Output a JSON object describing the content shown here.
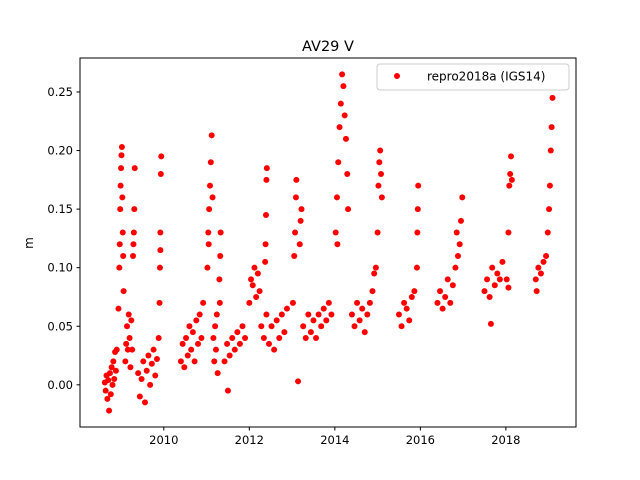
{
  "chart_data": {
    "type": "scatter",
    "title": "AV29 V",
    "xlabel": "",
    "ylabel": "m",
    "xlim": [
      2008.04,
      2019.64
    ],
    "ylim": [
      -0.036,
      0.279
    ],
    "xticks": [
      2010,
      2012,
      2014,
      2016,
      2018
    ],
    "xtick_labels": [
      "2010",
      "2012",
      "2014",
      "2016",
      "2018"
    ],
    "yticks": [
      0.0,
      0.05,
      0.1,
      0.15,
      0.2,
      0.25
    ],
    "ytick_labels": [
      "0.00",
      "0.05",
      "0.10",
      "0.15",
      "0.20",
      "0.25"
    ],
    "grid": false,
    "legend_position": "top-right",
    "color": "#ff0000",
    "series": [
      {
        "name": "repro2018a (IGS14)",
        "points": [
          [
            2008.62,
            0.002
          ],
          [
            2008.64,
            -0.005
          ],
          [
            2008.66,
            0.008
          ],
          [
            2008.68,
            -0.012
          ],
          [
            2008.7,
            0.004
          ],
          [
            2008.72,
            -0.022
          ],
          [
            2008.74,
            0.01
          ],
          [
            2008.76,
            -0.008
          ],
          [
            2008.78,
            0.015
          ],
          [
            2008.8,
            0.0
          ],
          [
            2008.82,
            0.02
          ],
          [
            2008.84,
            0.005
          ],
          [
            2008.86,
            0.028
          ],
          [
            2008.88,
            0.012
          ],
          [
            2008.9,
            0.03
          ],
          [
            2008.94,
            0.065
          ],
          [
            2008.96,
            0.1
          ],
          [
            2008.97,
            0.12
          ],
          [
            2008.98,
            0.15
          ],
          [
            2008.99,
            0.17
          ],
          [
            2009.0,
            0.185
          ],
          [
            2009.01,
            0.196
          ],
          [
            2009.02,
            0.203
          ],
          [
            2009.03,
            0.16
          ],
          [
            2009.04,
            0.13
          ],
          [
            2009.05,
            0.11
          ],
          [
            2009.06,
            0.08
          ],
          [
            2009.1,
            0.02
          ],
          [
            2009.12,
            0.035
          ],
          [
            2009.14,
            0.05
          ],
          [
            2009.16,
            0.03
          ],
          [
            2009.18,
            0.06
          ],
          [
            2009.2,
            0.04
          ],
          [
            2009.22,
            0.015
          ],
          [
            2009.24,
            0.055
          ],
          [
            2009.26,
            0.03
          ],
          [
            2009.28,
            0.11
          ],
          [
            2009.3,
            0.13
          ],
          [
            2009.31,
            0.15
          ],
          [
            2009.32,
            0.185
          ],
          [
            2009.29,
            0.12
          ],
          [
            2009.4,
            0.01
          ],
          [
            2009.44,
            -0.01
          ],
          [
            2009.48,
            0.005
          ],
          [
            2009.52,
            0.02
          ],
          [
            2009.56,
            -0.015
          ],
          [
            2009.6,
            0.012
          ],
          [
            2009.64,
            0.025
          ],
          [
            2009.68,
            0.0
          ],
          [
            2009.72,
            0.018
          ],
          [
            2009.76,
            0.03
          ],
          [
            2009.8,
            0.008
          ],
          [
            2009.84,
            0.022
          ],
          [
            2009.88,
            0.04
          ],
          [
            2009.9,
            0.07
          ],
          [
            2009.91,
            0.1
          ],
          [
            2009.92,
            0.13
          ],
          [
            2009.93,
            0.18
          ],
          [
            2009.94,
            0.195
          ],
          [
            2009.92,
            0.115
          ],
          [
            2010.4,
            0.02
          ],
          [
            2010.44,
            0.035
          ],
          [
            2010.48,
            0.015
          ],
          [
            2010.52,
            0.04
          ],
          [
            2010.56,
            0.025
          ],
          [
            2010.6,
            0.05
          ],
          [
            2010.64,
            0.03
          ],
          [
            2010.68,
            0.045
          ],
          [
            2010.72,
            0.02
          ],
          [
            2010.76,
            0.055
          ],
          [
            2010.8,
            0.035
          ],
          [
            2010.84,
            0.06
          ],
          [
            2010.88,
            0.04
          ],
          [
            2010.92,
            0.07
          ],
          [
            2011.02,
            0.1
          ],
          [
            2011.04,
            0.13
          ],
          [
            2011.06,
            0.15
          ],
          [
            2011.08,
            0.17
          ],
          [
            2011.1,
            0.19
          ],
          [
            2011.12,
            0.213
          ],
          [
            2011.14,
            0.16
          ],
          [
            2011.05,
            0.12
          ],
          [
            2011.16,
            0.04
          ],
          [
            2011.18,
            0.02
          ],
          [
            2011.2,
            0.05
          ],
          [
            2011.22,
            0.03
          ],
          [
            2011.24,
            0.06
          ],
          [
            2011.26,
            0.01
          ],
          [
            2011.3,
            0.09
          ],
          [
            2011.32,
            0.11
          ],
          [
            2011.33,
            0.13
          ],
          [
            2011.31,
            0.07
          ],
          [
            2011.42,
            0.02
          ],
          [
            2011.48,
            0.035
          ],
          [
            2011.54,
            0.025
          ],
          [
            2011.6,
            0.04
          ],
          [
            2011.66,
            0.03
          ],
          [
            2011.72,
            0.045
          ],
          [
            2011.78,
            0.035
          ],
          [
            2011.84,
            0.05
          ],
          [
            2011.9,
            0.04
          ],
          [
            2011.5,
            -0.005
          ],
          [
            2012.0,
            0.07
          ],
          [
            2012.04,
            0.09
          ],
          [
            2012.08,
            0.085
          ],
          [
            2012.12,
            0.1
          ],
          [
            2012.16,
            0.075
          ],
          [
            2012.2,
            0.095
          ],
          [
            2012.24,
            0.08
          ],
          [
            2012.28,
            0.05
          ],
          [
            2012.34,
            0.04
          ],
          [
            2012.4,
            0.06
          ],
          [
            2012.46,
            0.035
          ],
          [
            2012.52,
            0.05
          ],
          [
            2012.58,
            0.03
          ],
          [
            2012.64,
            0.055
          ],
          [
            2012.7,
            0.04
          ],
          [
            2012.76,
            0.06
          ],
          [
            2012.82,
            0.045
          ],
          [
            2012.88,
            0.065
          ],
          [
            2012.38,
            0.12
          ],
          [
            2012.39,
            0.145
          ],
          [
            2012.4,
            0.175
          ],
          [
            2012.41,
            0.185
          ],
          [
            2012.37,
            0.105
          ],
          [
            2013.02,
            0.07
          ],
          [
            2013.05,
            0.11
          ],
          [
            2013.07,
            0.13
          ],
          [
            2013.09,
            0.16
          ],
          [
            2013.1,
            0.175
          ],
          [
            2013.18,
            0.12
          ],
          [
            2013.2,
            0.14
          ],
          [
            2013.22,
            0.15
          ],
          [
            2013.14,
            0.003
          ],
          [
            2013.26,
            0.05
          ],
          [
            2013.32,
            0.04
          ],
          [
            2013.38,
            0.06
          ],
          [
            2013.44,
            0.045
          ],
          [
            2013.5,
            0.055
          ],
          [
            2013.56,
            0.04
          ],
          [
            2013.62,
            0.06
          ],
          [
            2013.68,
            0.05
          ],
          [
            2013.74,
            0.065
          ],
          [
            2013.8,
            0.055
          ],
          [
            2013.86,
            0.07
          ],
          [
            2013.92,
            0.06
          ],
          [
            2014.02,
            0.13
          ],
          [
            2014.05,
            0.16
          ],
          [
            2014.08,
            0.19
          ],
          [
            2014.11,
            0.22
          ],
          [
            2014.14,
            0.24
          ],
          [
            2014.17,
            0.265
          ],
          [
            2014.2,
            0.255
          ],
          [
            2014.23,
            0.23
          ],
          [
            2014.26,
            0.21
          ],
          [
            2014.29,
            0.18
          ],
          [
            2014.31,
            0.15
          ],
          [
            2014.06,
            0.12
          ],
          [
            2014.4,
            0.06
          ],
          [
            2014.46,
            0.05
          ],
          [
            2014.52,
            0.07
          ],
          [
            2014.58,
            0.055
          ],
          [
            2014.64,
            0.065
          ],
          [
            2014.7,
            0.045
          ],
          [
            2014.76,
            0.06
          ],
          [
            2014.82,
            0.07
          ],
          [
            2014.88,
            0.08
          ],
          [
            2014.92,
            0.095
          ],
          [
            2014.96,
            0.1
          ],
          [
            2015.0,
            0.13
          ],
          [
            2015.02,
            0.17
          ],
          [
            2015.04,
            0.19
          ],
          [
            2015.06,
            0.2
          ],
          [
            2015.08,
            0.18
          ],
          [
            2015.1,
            0.16
          ],
          [
            2015.5,
            0.06
          ],
          [
            2015.56,
            0.05
          ],
          [
            2015.62,
            0.07
          ],
          [
            2015.68,
            0.065
          ],
          [
            2015.74,
            0.055
          ],
          [
            2015.8,
            0.075
          ],
          [
            2015.86,
            0.08
          ],
          [
            2015.92,
            0.1
          ],
          [
            2015.93,
            0.13
          ],
          [
            2015.94,
            0.15
          ],
          [
            2015.95,
            0.17
          ],
          [
            2016.4,
            0.07
          ],
          [
            2016.46,
            0.08
          ],
          [
            2016.52,
            0.065
          ],
          [
            2016.58,
            0.075
          ],
          [
            2016.64,
            0.09
          ],
          [
            2016.7,
            0.07
          ],
          [
            2016.76,
            0.085
          ],
          [
            2016.82,
            0.1
          ],
          [
            2016.88,
            0.11
          ],
          [
            2016.92,
            0.12
          ],
          [
            2016.95,
            0.14
          ],
          [
            2016.98,
            0.16
          ],
          [
            2016.85,
            0.13
          ],
          [
            2017.5,
            0.08
          ],
          [
            2017.56,
            0.09
          ],
          [
            2017.62,
            0.075
          ],
          [
            2017.68,
            0.1
          ],
          [
            2017.74,
            0.085
          ],
          [
            2017.8,
            0.095
          ],
          [
            2017.86,
            0.09
          ],
          [
            2017.65,
            0.052
          ],
          [
            2017.92,
            0.105
          ],
          [
            2018.02,
            0.09
          ],
          [
            2018.06,
            0.13
          ],
          [
            2018.08,
            0.17
          ],
          [
            2018.1,
            0.18
          ],
          [
            2018.12,
            0.195
          ],
          [
            2018.14,
            0.175
          ],
          [
            2018.06,
            0.083
          ],
          [
            2018.7,
            0.09
          ],
          [
            2018.76,
            0.1
          ],
          [
            2018.82,
            0.095
          ],
          [
            2018.88,
            0.105
          ],
          [
            2018.94,
            0.11
          ],
          [
            2018.98,
            0.13
          ],
          [
            2019.01,
            0.15
          ],
          [
            2019.03,
            0.17
          ],
          [
            2019.05,
            0.2
          ],
          [
            2019.07,
            0.22
          ],
          [
            2019.09,
            0.245
          ],
          [
            2018.72,
            0.08
          ]
        ]
      }
    ]
  }
}
